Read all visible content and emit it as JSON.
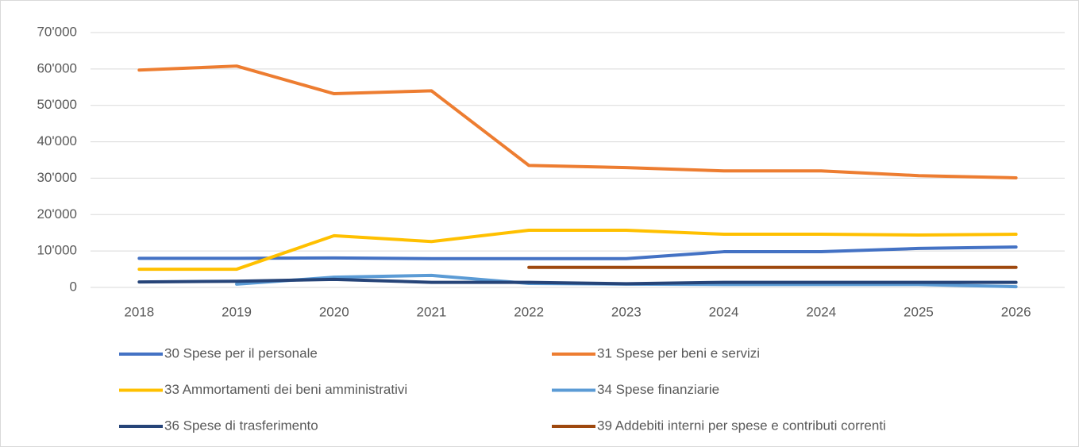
{
  "chart_data": {
    "type": "line",
    "categories": [
      "2018",
      "2019",
      "2020",
      "2021",
      "2022",
      "2023",
      "2024",
      "2024",
      "2025",
      "2026"
    ],
    "series": [
      {
        "name": "30 Spese per il personale",
        "color": "#4472c4",
        "values": [
          8000,
          8000,
          8100,
          7900,
          7900,
          7900,
          9800,
          9800,
          10700,
          11100
        ]
      },
      {
        "name": "31 Spese per beni e servizi",
        "color": "#ed7d31",
        "values": [
          59700,
          60800,
          53200,
          54000,
          33500,
          32900,
          32000,
          32000,
          30700,
          30100
        ]
      },
      {
        "name": "33 Ammortamenti dei beni amministrativi",
        "color": "#ffc000",
        "values": [
          5000,
          5000,
          14200,
          12600,
          15700,
          15700,
          14600,
          14600,
          14400,
          14600
        ]
      },
      {
        "name": "34 Spese finanziarie",
        "color": "#5b9bd5",
        "values": [
          null,
          900,
          2800,
          3300,
          1100,
          900,
          800,
          800,
          800,
          200
        ]
      },
      {
        "name": "36 Spese di trasferimento",
        "color": "#264478",
        "values": [
          1500,
          1700,
          2200,
          1400,
          1400,
          1000,
          1400,
          1400,
          1400,
          1400
        ]
      },
      {
        "name": "39 Addebiti interni per spese e contributi correnti",
        "color": "#9e480e",
        "values": [
          null,
          null,
          null,
          null,
          5500,
          5500,
          5500,
          5500,
          5500,
          5500
        ]
      }
    ],
    "ylim": [
      0,
      70000
    ],
    "yticks": [
      0,
      {
        "value": 10000,
        "label": "10'000"
      },
      {
        "value": 20000,
        "label": "20'000"
      },
      {
        "value": 30000,
        "label": "30'000"
      },
      {
        "value": 40000,
        "label": "40'000"
      },
      {
        "value": 50000,
        "label": "50'000"
      },
      {
        "value": 60000,
        "label": "60'000"
      },
      {
        "value": 70000,
        "label": "70'000"
      }
    ],
    "grid": true,
    "legend": "bottom"
  }
}
